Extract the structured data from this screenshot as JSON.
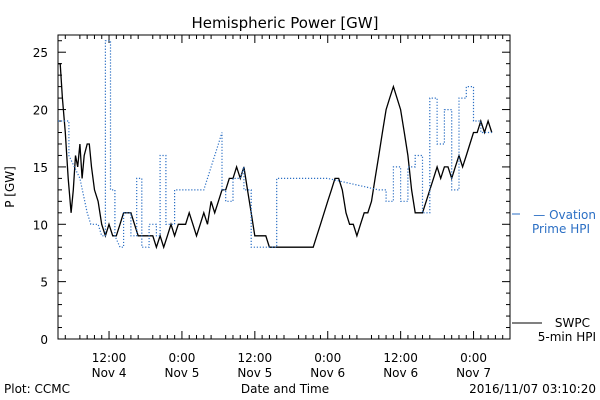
{
  "chart_data": {
    "type": "line",
    "title": "Hemispheric Power [GW]",
    "xlabel": "Date and Time",
    "ylabel": "P [GW]",
    "ylim": [
      0,
      26.5
    ],
    "xlim": [
      0,
      62
    ],
    "yticks": [
      0,
      5,
      10,
      15,
      20,
      25
    ],
    "xticks": [
      {
        "x": 7,
        "time": "12:00",
        "date": "Nov 4"
      },
      {
        "x": 17,
        "time": "0:00",
        "date": "Nov 5"
      },
      {
        "x": 27,
        "time": "12:00",
        "date": "Nov 5"
      },
      {
        "x": 37,
        "time": "0:00",
        "date": "Nov 6"
      },
      {
        "x": 47,
        "time": "12:00",
        "date": "Nov 6"
      },
      {
        "x": 57,
        "time": "0:00",
        "date": "Nov 7"
      }
    ],
    "x_unit_note_hours_per_unit": 1.2,
    "series": [
      {
        "name": "SWPC 5-min HPI",
        "legend_lines": [
          "SWPC",
          "5-min HPI"
        ],
        "color": "#000000",
        "style": "solid",
        "points": [
          [
            0,
            24
          ],
          [
            0.3,
            24
          ],
          [
            0.6,
            21
          ],
          [
            1,
            18
          ],
          [
            1.4,
            14
          ],
          [
            1.8,
            11
          ],
          [
            2.1,
            13
          ],
          [
            2.4,
            16
          ],
          [
            2.7,
            15
          ],
          [
            3,
            17
          ],
          [
            3.3,
            14
          ],
          [
            3.6,
            16
          ],
          [
            4,
            17
          ],
          [
            4.3,
            17
          ],
          [
            4.6,
            15
          ],
          [
            5,
            13
          ],
          [
            5.5,
            12
          ],
          [
            6,
            10
          ],
          [
            6.5,
            9
          ],
          [
            7,
            10
          ],
          [
            7.5,
            9
          ],
          [
            8,
            9
          ],
          [
            8.5,
            10
          ],
          [
            9,
            11
          ],
          [
            9.5,
            11
          ],
          [
            10,
            11
          ],
          [
            10.5,
            10
          ],
          [
            11,
            9
          ],
          [
            11.5,
            9
          ],
          [
            12,
            9
          ],
          [
            12.5,
            9
          ],
          [
            13,
            9
          ],
          [
            13.5,
            8
          ],
          [
            14,
            9
          ],
          [
            14.5,
            8
          ],
          [
            15,
            9
          ],
          [
            15.5,
            10
          ],
          [
            16,
            9
          ],
          [
            16.5,
            10
          ],
          [
            17,
            10
          ],
          [
            17.5,
            10
          ],
          [
            18,
            11
          ],
          [
            18.5,
            10
          ],
          [
            19,
            9
          ],
          [
            19.5,
            10
          ],
          [
            20,
            11
          ],
          [
            20.5,
            10
          ],
          [
            21,
            12
          ],
          [
            21.5,
            11
          ],
          [
            22,
            12
          ],
          [
            22.5,
            13
          ],
          [
            23,
            13
          ],
          [
            23.5,
            14
          ],
          [
            24,
            14
          ],
          [
            24.5,
            15
          ],
          [
            25,
            14
          ],
          [
            25.5,
            15
          ],
          [
            26,
            13
          ],
          [
            26.5,
            11
          ],
          [
            27,
            9
          ],
          [
            27.5,
            9
          ],
          [
            28,
            9
          ],
          [
            28.5,
            9
          ],
          [
            29,
            8
          ],
          [
            30,
            8
          ],
          [
            31,
            8
          ],
          [
            32,
            8
          ],
          [
            33,
            8
          ],
          [
            34,
            8
          ],
          [
            35,
            8
          ],
          [
            35.5,
            9
          ],
          [
            36,
            10
          ],
          [
            36.5,
            11
          ],
          [
            37,
            12
          ],
          [
            37.5,
            13
          ],
          [
            38,
            14
          ],
          [
            38.5,
            14
          ],
          [
            39,
            13
          ],
          [
            39.5,
            11
          ],
          [
            40,
            10
          ],
          [
            40.5,
            10
          ],
          [
            41,
            9
          ],
          [
            41.5,
            10
          ],
          [
            42,
            11
          ],
          [
            42.5,
            11
          ],
          [
            43,
            12
          ],
          [
            43.5,
            14
          ],
          [
            44,
            16
          ],
          [
            44.5,
            18
          ],
          [
            45,
            20
          ],
          [
            45.5,
            21
          ],
          [
            46,
            22
          ],
          [
            46.5,
            21
          ],
          [
            47,
            20
          ],
          [
            47.5,
            18
          ],
          [
            48,
            16
          ],
          [
            48.5,
            13
          ],
          [
            49,
            11
          ],
          [
            49.5,
            11
          ],
          [
            50,
            11
          ],
          [
            50.5,
            12
          ],
          [
            51,
            13
          ],
          [
            51.5,
            14
          ],
          [
            52,
            15
          ],
          [
            52.5,
            14
          ],
          [
            53,
            15
          ],
          [
            53.5,
            15
          ],
          [
            54,
            14
          ],
          [
            54.5,
            15
          ],
          [
            55,
            16
          ],
          [
            55.5,
            15
          ],
          [
            56,
            16
          ],
          [
            56.5,
            17
          ],
          [
            57,
            18
          ],
          [
            57.5,
            18
          ],
          [
            58,
            19
          ],
          [
            58.5,
            18
          ],
          [
            59,
            19
          ],
          [
            59.5,
            18
          ]
        ]
      },
      {
        "name": "Ovation Prime HPI",
        "legend_lines": [
          "— Ovation",
          "Prime HPI"
        ],
        "color": "#2b6fc4",
        "style": "dotted",
        "points": [
          [
            0,
            19
          ],
          [
            1.5,
            19
          ],
          [
            1.5,
            16
          ],
          [
            3,
            14
          ],
          [
            4,
            11
          ],
          [
            4.5,
            10
          ],
          [
            5.5,
            10
          ],
          [
            6,
            9
          ],
          [
            6.5,
            9
          ],
          [
            6.5,
            26
          ],
          [
            7.2,
            26
          ],
          [
            7.2,
            13
          ],
          [
            7.8,
            13
          ],
          [
            7.8,
            9
          ],
          [
            8.5,
            8
          ],
          [
            9,
            8
          ],
          [
            9,
            11
          ],
          [
            10,
            11
          ],
          [
            10,
            9
          ],
          [
            10.8,
            9
          ],
          [
            10.8,
            14
          ],
          [
            11.5,
            14
          ],
          [
            11.5,
            8
          ],
          [
            12.5,
            8
          ],
          [
            12.5,
            10
          ],
          [
            13.5,
            10
          ],
          [
            13.5,
            9
          ],
          [
            14,
            9
          ],
          [
            14,
            16
          ],
          [
            14.8,
            16
          ],
          [
            14.8,
            10
          ],
          [
            16,
            10
          ],
          [
            16,
            13
          ],
          [
            20,
            13
          ],
          [
            22,
            17
          ],
          [
            22.5,
            18
          ],
          [
            22.5,
            13
          ],
          [
            23,
            13
          ],
          [
            23,
            12
          ],
          [
            24,
            12
          ],
          [
            24,
            14
          ],
          [
            25,
            14
          ],
          [
            25.5,
            15
          ],
          [
            25.5,
            13
          ],
          [
            26.5,
            13
          ],
          [
            26.5,
            8
          ],
          [
            29.5,
            8
          ],
          [
            30,
            8
          ],
          [
            30,
            14
          ],
          [
            37,
            14
          ],
          [
            44,
            13
          ],
          [
            45,
            13
          ],
          [
            45,
            12
          ],
          [
            46,
            12
          ],
          [
            46,
            15
          ],
          [
            47,
            15
          ],
          [
            47,
            12
          ],
          [
            48,
            12
          ],
          [
            48,
            15
          ],
          [
            49,
            15
          ],
          [
            49,
            16
          ],
          [
            50,
            16
          ],
          [
            50,
            11
          ],
          [
            51,
            11
          ],
          [
            51,
            21
          ],
          [
            52,
            21
          ],
          [
            52,
            17
          ],
          [
            53,
            17
          ],
          [
            53,
            20
          ],
          [
            54,
            20
          ],
          [
            54,
            13
          ],
          [
            55,
            13
          ],
          [
            55,
            21
          ],
          [
            56,
            21
          ],
          [
            56,
            22
          ],
          [
            57,
            22
          ],
          [
            57,
            19
          ],
          [
            58,
            19
          ],
          [
            58,
            18
          ],
          [
            59,
            18
          ],
          [
            59.5,
            18
          ]
        ]
      }
    ],
    "legend_position": "right"
  },
  "footer": {
    "left": "Plot: CCMC",
    "right": "2016/11/07 03:10:20"
  }
}
